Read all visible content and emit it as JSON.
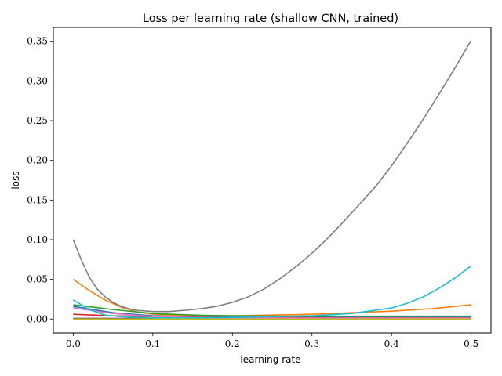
{
  "chart_data": {
    "type": "line",
    "title": "Loss per learning rate (shallow CNN, trained)",
    "xlabel": "learning rate",
    "ylabel": "loss",
    "xlim": [
      -0.025,
      0.525
    ],
    "ylim": [
      -0.0175,
      0.3675
    ],
    "x_ticks": [
      "0.0",
      "0.1",
      "0.2",
      "0.3",
      "0.4",
      "0.5"
    ],
    "y_ticks": [
      "0.00",
      "0.05",
      "0.10",
      "0.15",
      "0.20",
      "0.25",
      "0.30",
      "0.35"
    ],
    "grid": false,
    "series": [
      {
        "color": "#1f77b4",
        "x": [
          0,
          0.05,
          0.1,
          0.15,
          0.2,
          0.3,
          0.4,
          0.5
        ],
        "y": [
          0.016,
          0.008,
          0.004,
          0.003,
          0.0025,
          0.0025,
          0.0025,
          0.003
        ]
      },
      {
        "color": "#ff7f0e",
        "x": [
          0,
          0.02,
          0.04,
          0.06,
          0.08,
          0.1,
          0.15,
          0.2,
          0.25,
          0.3,
          0.35,
          0.4,
          0.45,
          0.5
        ],
        "y": [
          0.05,
          0.036,
          0.024,
          0.015,
          0.009,
          0.006,
          0.004,
          0.004,
          0.005,
          0.006,
          0.008,
          0.01,
          0.013,
          0.018
        ]
      },
      {
        "color": "#2ca02c",
        "x": [
          0,
          0.05,
          0.1,
          0.15,
          0.2,
          0.3,
          0.4,
          0.5
        ],
        "y": [
          0.018,
          0.012,
          0.007,
          0.005,
          0.004,
          0.0035,
          0.0035,
          0.0035
        ]
      },
      {
        "color": "#d62728",
        "x": [
          0,
          0.05,
          0.1,
          0.15,
          0.2,
          0.3,
          0.4,
          0.5
        ],
        "y": [
          0.006,
          0.004,
          0.003,
          0.0025,
          0.002,
          0.0015,
          0.0015,
          0.0015
        ]
      },
      {
        "color": "#9467bd",
        "x": [
          0,
          0.1,
          0.2,
          0.3,
          0.4,
          0.5
        ],
        "y": [
          0.001,
          0.001,
          0.001,
          0.001,
          0.001,
          0.001
        ]
      },
      {
        "color": "#8c564b",
        "x": [
          0,
          0.1,
          0.2,
          0.3,
          0.4,
          0.5
        ],
        "y": [
          0.0005,
          0.0005,
          0.0005,
          0.0005,
          0.0005,
          0.0005
        ]
      },
      {
        "color": "#e377c2",
        "x": [
          0,
          0.05,
          0.1,
          0.15,
          0.2,
          0.3,
          0.4,
          0.5
        ],
        "y": [
          0.014,
          0.007,
          0.003,
          0.002,
          0.0015,
          0.0012,
          0.0012,
          0.0012
        ]
      },
      {
        "color": "#7f7f7f",
        "x": [
          0,
          0.01,
          0.02,
          0.03,
          0.04,
          0.05,
          0.06,
          0.07,
          0.08,
          0.1,
          0.12,
          0.14,
          0.16,
          0.18,
          0.2,
          0.22,
          0.24,
          0.26,
          0.28,
          0.3,
          0.32,
          0.34,
          0.36,
          0.38,
          0.4,
          0.42,
          0.44,
          0.46,
          0.48,
          0.5
        ],
        "y": [
          0.1,
          0.075,
          0.053,
          0.038,
          0.028,
          0.021,
          0.016,
          0.013,
          0.011,
          0.0095,
          0.0095,
          0.011,
          0.013,
          0.016,
          0.021,
          0.028,
          0.038,
          0.051,
          0.066,
          0.083,
          0.102,
          0.123,
          0.145,
          0.167,
          0.193,
          0.222,
          0.252,
          0.284,
          0.317,
          0.351
        ]
      },
      {
        "color": "#bcbd22",
        "x": [
          0,
          0.1,
          0.2,
          0.3,
          0.4,
          0.5
        ],
        "y": [
          0.0,
          0.0,
          0.0,
          0.0,
          0.0,
          0.0
        ]
      },
      {
        "color": "#17becf",
        "x": [
          0,
          0.02,
          0.04,
          0.06,
          0.08,
          0.1,
          0.15,
          0.2,
          0.25,
          0.3,
          0.35,
          0.4,
          0.42,
          0.44,
          0.46,
          0.48,
          0.5
        ],
        "y": [
          0.024,
          0.012,
          0.005,
          0.003,
          0.002,
          0.0015,
          0.0015,
          0.002,
          0.003,
          0.004,
          0.007,
          0.014,
          0.02,
          0.028,
          0.039,
          0.052,
          0.067
        ]
      }
    ]
  }
}
